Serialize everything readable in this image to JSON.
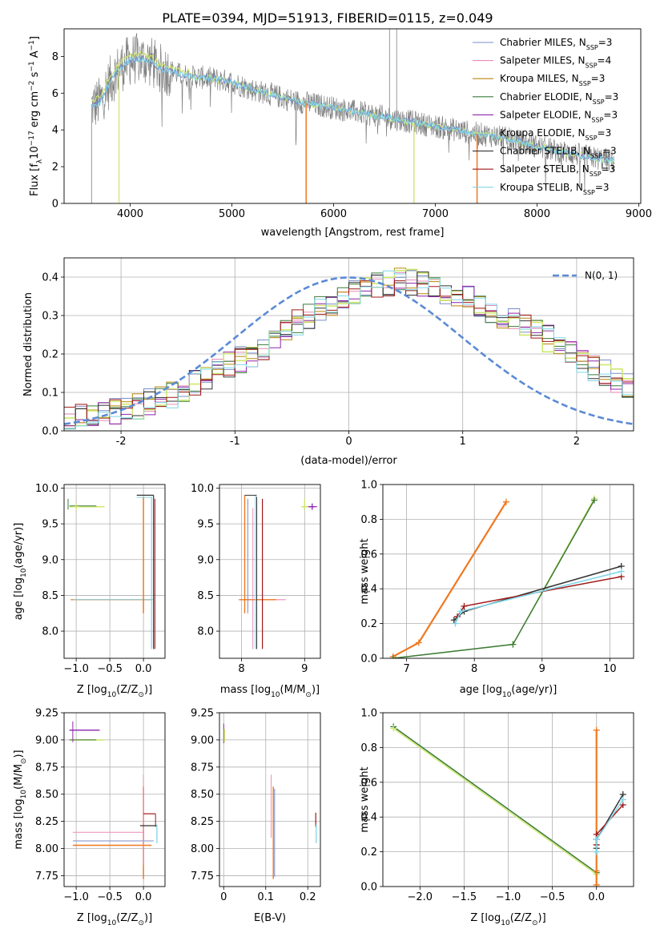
{
  "figure": {
    "title": "PLATE=0394, MJD=51913, FIBERID=0115, z=0.049"
  },
  "colors": {
    "Chabrier MILES": "#7b8cc8",
    "Salpeter MILES": "#e88ab8",
    "Kroupa MILES": "#b8860b",
    "Chabrier ELODIE": "#3a7a3a",
    "Salpeter ELODIE": "#8e24aa",
    "Kroupa ELODIE": "#cfe86e",
    "Chabrier STELIB": "#333333",
    "Salpeter STELIB": "#a01818",
    "Kroupa STELIB": "#7fd6e8",
    "data": "#808080",
    "orange": "#f07820",
    "gauss": "#5b8ad6"
  },
  "chart_data": [
    {
      "id": "spectrum",
      "type": "line",
      "title": "PLATE=0394, MJD=51913, FIBERID=0115, z=0.049",
      "xlabel": "wavelength [Angstrom, rest frame]",
      "ylabel_main": "Flux [f",
      "ylabel_sub": "λ",
      "ylabel_rest": "10",
      "ylabel_exp1": "−17",
      "ylabel_mid": " erg cm",
      "ylabel_exp2": "−2",
      "ylabel_mid2": " s",
      "ylabel_exp3": "−1",
      "ylabel_end": " A",
      "ylabel_exp4": "−1",
      "ylabel_close": "]",
      "xlim": [
        3350,
        9020
      ],
      "ylim": [
        0,
        9.5
      ],
      "xticks": [
        4000,
        5000,
        6000,
        7000,
        8000,
        9000
      ],
      "yticks": [
        0,
        2,
        4,
        6,
        8
      ],
      "grid": false,
      "legend_position": "upper right",
      "legend": [
        {
          "label": "Chabrier MILES, N",
          "sub": "SSP",
          "suffix": "=3"
        },
        {
          "label": "Salpeter MILES, N",
          "sub": "SSP",
          "suffix": "=4"
        },
        {
          "label": "Kroupa MILES, N",
          "sub": "SSP",
          "suffix": "=3"
        },
        {
          "label": "Chabrier ELODIE, N",
          "sub": "SSP",
          "suffix": "=3"
        },
        {
          "label": "Salpeter ELODIE, N",
          "sub": "SSP",
          "suffix": "=3"
        },
        {
          "label": "Kroupa ELODIE, N",
          "sub": "SSP",
          "suffix": "=3"
        },
        {
          "label": "Chabrier STELIB, N",
          "sub": "SSP",
          "suffix": "=3"
        },
        {
          "label": "Salpeter STELIB, N",
          "sub": "SSP",
          "suffix": "=3"
        },
        {
          "label": "Kroupa STELIB, N",
          "sub": "SSP",
          "suffix": "=3"
        }
      ],
      "continuum": {
        "x": [
          3620,
          3700,
          3800,
          3900,
          4000,
          4100,
          4200,
          4300,
          4400,
          4500,
          4600,
          4800,
          5000,
          5200,
          5400,
          5600,
          5800,
          6000,
          6200,
          6400,
          6600,
          6800,
          7000,
          7200,
          7400,
          7600,
          7800,
          8000,
          8200,
          8400,
          8600,
          8760
        ],
        "y": [
          5.3,
          5.5,
          6.6,
          7.4,
          7.8,
          7.9,
          7.7,
          7.3,
          7.2,
          7.0,
          6.9,
          6.8,
          6.6,
          6.2,
          5.9,
          5.6,
          5.4,
          5.2,
          5.0,
          4.8,
          4.6,
          4.4,
          4.2,
          4.0,
          3.8,
          3.65,
          3.4,
          3.1,
          2.85,
          2.65,
          2.45,
          2.3
        ]
      },
      "spikes": [
        {
          "x": 3620,
          "y": 0
        },
        {
          "x": 3890,
          "y": 0
        },
        {
          "x": 5730,
          "y": 0
        },
        {
          "x": 6550,
          "y": 9.5
        },
        {
          "x": 6620,
          "y": 9.5
        },
        {
          "x": 6790,
          "y": 0
        },
        {
          "x": 7410,
          "y": 0
        }
      ]
    },
    {
      "id": "residuals",
      "type": "histogram",
      "xlabel": "(data-model)/error",
      "ylabel": "Normed distribution",
      "xlim": [
        -2.5,
        2.5
      ],
      "ylim": [
        0,
        0.45
      ],
      "xticks": [
        -2,
        -1,
        0,
        1,
        2
      ],
      "yticks": [
        0.0,
        0.1,
        0.2,
        0.3,
        0.4
      ],
      "grid": true,
      "legend_position": "upper right",
      "gauss_label": "N(0, 1)",
      "bin_width": 0.1,
      "bin_start": -2.5,
      "envelope": [
        0.03,
        0.035,
        0.04,
        0.045,
        0.05,
        0.055,
        0.065,
        0.075,
        0.085,
        0.095,
        0.11,
        0.125,
        0.14,
        0.155,
        0.17,
        0.185,
        0.2,
        0.22,
        0.24,
        0.26,
        0.28,
        0.3,
        0.32,
        0.335,
        0.35,
        0.36,
        0.37,
        0.38,
        0.385,
        0.39,
        0.385,
        0.38,
        0.375,
        0.365,
        0.355,
        0.345,
        0.33,
        0.315,
        0.3,
        0.285,
        0.27,
        0.255,
        0.24,
        0.22,
        0.2,
        0.185,
        0.165,
        0.15,
        0.135,
        0.12,
        0.105
      ]
    },
    {
      "id": "age_vs_Z",
      "type": "scatter",
      "xlabel": "Z [log",
      "xlabel_sub": "10",
      "xlabel_rest": "(Z/Z",
      "xlabel_sun": "⊙",
      "xlabel_close": ")]",
      "ylabel": "age  [log",
      "ylabel_sub": "10",
      "ylabel_rest": "(age/yr)]",
      "xlim": [
        -1.18,
        0.32
      ],
      "ylim": [
        7.62,
        10.05
      ],
      "xticks": [
        -1.0,
        -0.5,
        0.0
      ],
      "xtick_labels": [
        "−1.0",
        "−0.5",
        "0.0"
      ],
      "yticks": [
        8.0,
        8.5,
        9.0,
        9.5,
        10.0
      ],
      "grid": true
    },
    {
      "id": "age_vs_mass",
      "type": "scatter",
      "xlabel": "mass [log",
      "xlabel_sub": "10",
      "xlabel_rest": "(M/M",
      "xlabel_sun": "⊙",
      "xlabel_close": ")]",
      "xlim": [
        7.65,
        9.25
      ],
      "ylim": [
        7.62,
        10.05
      ],
      "xticks": [
        8,
        9
      ],
      "yticks": [
        8.0,
        8.5,
        9.0,
        9.5,
        10.0
      ],
      "grid": true
    },
    {
      "id": "weight_vs_age",
      "type": "line",
      "xlabel": "age  [log",
      "xlabel_sub": "10",
      "xlabel_rest": "(age/yr)]",
      "ylabel": "mass weight",
      "xlim": [
        6.65,
        10.35
      ],
      "ylim": [
        0,
        1.0
      ],
      "xticks": [
        7,
        8,
        9,
        10
      ],
      "yticks": [
        0.0,
        0.2,
        0.4,
        0.6,
        0.8,
        1.0
      ],
      "grid": true,
      "series": [
        {
          "color": "orange",
          "x": [
            6.8,
            7.18,
            8.47
          ],
          "y": [
            0.01,
            0.09,
            0.9
          ]
        },
        {
          "color": "Kroupa ELODIE",
          "x": [
            6.8,
            8.57,
            9.77
          ],
          "y": [
            0.0,
            0.08,
            0.92
          ]
        },
        {
          "color": "Chabrier ELODIE",
          "x": [
            6.8,
            8.57,
            9.77
          ],
          "y": [
            0.0,
            0.08,
            0.91
          ]
        },
        {
          "color": "Chabrier STELIB",
          "x": [
            7.7,
            7.85,
            10.17
          ],
          "y": [
            0.22,
            0.27,
            0.53
          ]
        },
        {
          "color": "Salpeter STELIB",
          "x": [
            7.75,
            7.85,
            10.17
          ],
          "y": [
            0.24,
            0.3,
            0.47
          ]
        },
        {
          "color": "Kroupa STELIB",
          "x": [
            7.72,
            7.8,
            10.17
          ],
          "y": [
            0.2,
            0.27,
            0.5
          ]
        }
      ]
    },
    {
      "id": "mass_vs_Z",
      "type": "scatter",
      "xlabel": "Z [log",
      "xlabel_sub": "10",
      "xlabel_rest": "(Z/Z",
      "xlabel_sun": "⊙",
      "xlabel_close": ")]",
      "ylabel": "mass [log",
      "ylabel_sub": "10",
      "ylabel_rest": "(M/M",
      "ylabel_sun": "⊙",
      "ylabel_close": ")]",
      "xlim": [
        -1.18,
        0.32
      ],
      "ylim": [
        7.65,
        9.25
      ],
      "xticks": [
        -1.0,
        -0.5,
        0.0
      ],
      "xtick_labels": [
        "−1.0",
        "−0.5",
        "0.0"
      ],
      "yticks": [
        7.75,
        8.0,
        8.25,
        8.5,
        8.75,
        9.0,
        9.25
      ],
      "grid": true
    },
    {
      "id": "mass_vs_ebv",
      "type": "scatter",
      "xlabel": "E(B-V)",
      "xlim": [
        -0.01,
        0.23
      ],
      "ylim": [
        7.65,
        9.25
      ],
      "xticks": [
        0.0,
        0.1,
        0.2
      ],
      "yticks": [
        7.75,
        8.0,
        8.25,
        8.5,
        8.75,
        9.0,
        9.25
      ],
      "grid": true
    },
    {
      "id": "weight_vs_Z",
      "type": "line",
      "xlabel": "Z [log",
      "xlabel_sub": "10",
      "xlabel_rest": "(Z/Z",
      "xlabel_sun": "⊙",
      "xlabel_close": ")]",
      "ylabel": "mass weight",
      "xlim": [
        -2.42,
        0.42
      ],
      "ylim": [
        0,
        1.0
      ],
      "xticks": [
        -2.0,
        -1.5,
        -1.0,
        -0.5,
        0.0
      ],
      "xtick_labels": [
        "−2.0",
        "−1.5",
        "−1.0",
        "−0.5",
        "0.0"
      ],
      "yticks": [
        0.0,
        0.2,
        0.4,
        0.6,
        0.8,
        1.0
      ],
      "grid": true,
      "series": [
        {
          "color": "Chabrier ELODIE",
          "x": [
            -2.3,
            0.0,
            0.0
          ],
          "y": [
            0.92,
            0.08,
            0.0
          ]
        },
        {
          "color": "Kroupa ELODIE",
          "x": [
            -2.3,
            0.0,
            0.0
          ],
          "y": [
            0.91,
            0.07,
            0.0
          ]
        },
        {
          "color": "orange",
          "x": [
            0.0,
            0.0,
            0.0
          ],
          "y": [
            0.9,
            0.09,
            0.01
          ]
        },
        {
          "color": "Chabrier STELIB",
          "x": [
            0.0,
            0.0,
            0.3
          ],
          "y": [
            0.22,
            0.27,
            0.53
          ]
        },
        {
          "color": "Salpeter STELIB",
          "x": [
            0.0,
            0.0,
            0.3
          ],
          "y": [
            0.24,
            0.3,
            0.47
          ]
        },
        {
          "color": "Kroupa STELIB",
          "x": [
            0.0,
            0.0,
            0.3
          ],
          "y": [
            0.2,
            0.27,
            0.5
          ]
        }
      ]
    }
  ]
}
